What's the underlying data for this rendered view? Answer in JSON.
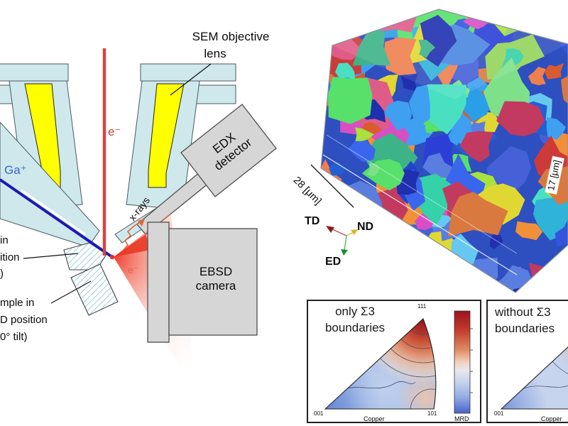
{
  "schematic": {
    "sem_lens_line1": "SEM objective",
    "sem_lens_line2": "lens",
    "electron_beam_label": "e⁻",
    "ion_beam_label": "Ga⁺",
    "xray_label": "x-rays",
    "edx_line1": "EDX",
    "edx_line2": "detector",
    "ebsd_line1": "EBSD",
    "ebsd_line2": "camera",
    "scattered_electrons_label": "e⁻",
    "cut_label_fragments": {
      "f1": "in",
      "f2": "ition",
      "f3": ")",
      "f4": "mple in",
      "f5": "D position",
      "f6": "0° tilt)"
    },
    "colors": {
      "column_fill": "#cfe8ec",
      "coil_fill": "#ffff00",
      "electron_beam": "#d84444",
      "ion_beam": "#1b1bb0",
      "xray": "#e06838",
      "detector_fill": "#d6d6d6",
      "cone": "#f03020",
      "hatch_line": "#9fcfdc"
    }
  },
  "cube_map": {
    "front_dimension_label": "28 [μm]",
    "side_dimension_label": "17 [μm]",
    "axis_labels": {
      "td": "TD",
      "nd": "ND",
      "ed": "ED"
    },
    "axis_colors": {
      "td": "#b03030",
      "nd": "#d4b920",
      "ed": "#2e9e3e"
    },
    "grain_palette": [
      "#2244cc",
      "#3a66ee",
      "#2b3fd6",
      "#4a86e0",
      "#2fb3d9",
      "#35d1a8",
      "#57e06a",
      "#a8e23e",
      "#e0d832",
      "#f09038",
      "#d85c30",
      "#cc3a3a",
      "#e05c88",
      "#d84fc4",
      "#8a4fd8",
      "#5a7de0",
      "#1f2fae",
      "#3f9ff0",
      "#49e0c2",
      "#7fe08a",
      "#ef7f4f",
      "#c23a60",
      "#3355dd",
      "#2a9fe8",
      "#66c8f0",
      "#4660d8",
      "#245fd2",
      "#3db388",
      "#93d45a",
      "#d9793f"
    ]
  },
  "pole_figures": {
    "left": {
      "title_line1": "only Σ3",
      "title_line2": "boundaries",
      "corner_top": "111",
      "corner_bottom_left": "001",
      "corner_bottom_right": "101",
      "projection_label": "Copper",
      "colorbar_label": "MRD"
    },
    "right": {
      "title_line1": "without Σ3",
      "title_line2": "boundaries",
      "corner_bottom_left": "001",
      "projection_label": "Copper"
    }
  }
}
